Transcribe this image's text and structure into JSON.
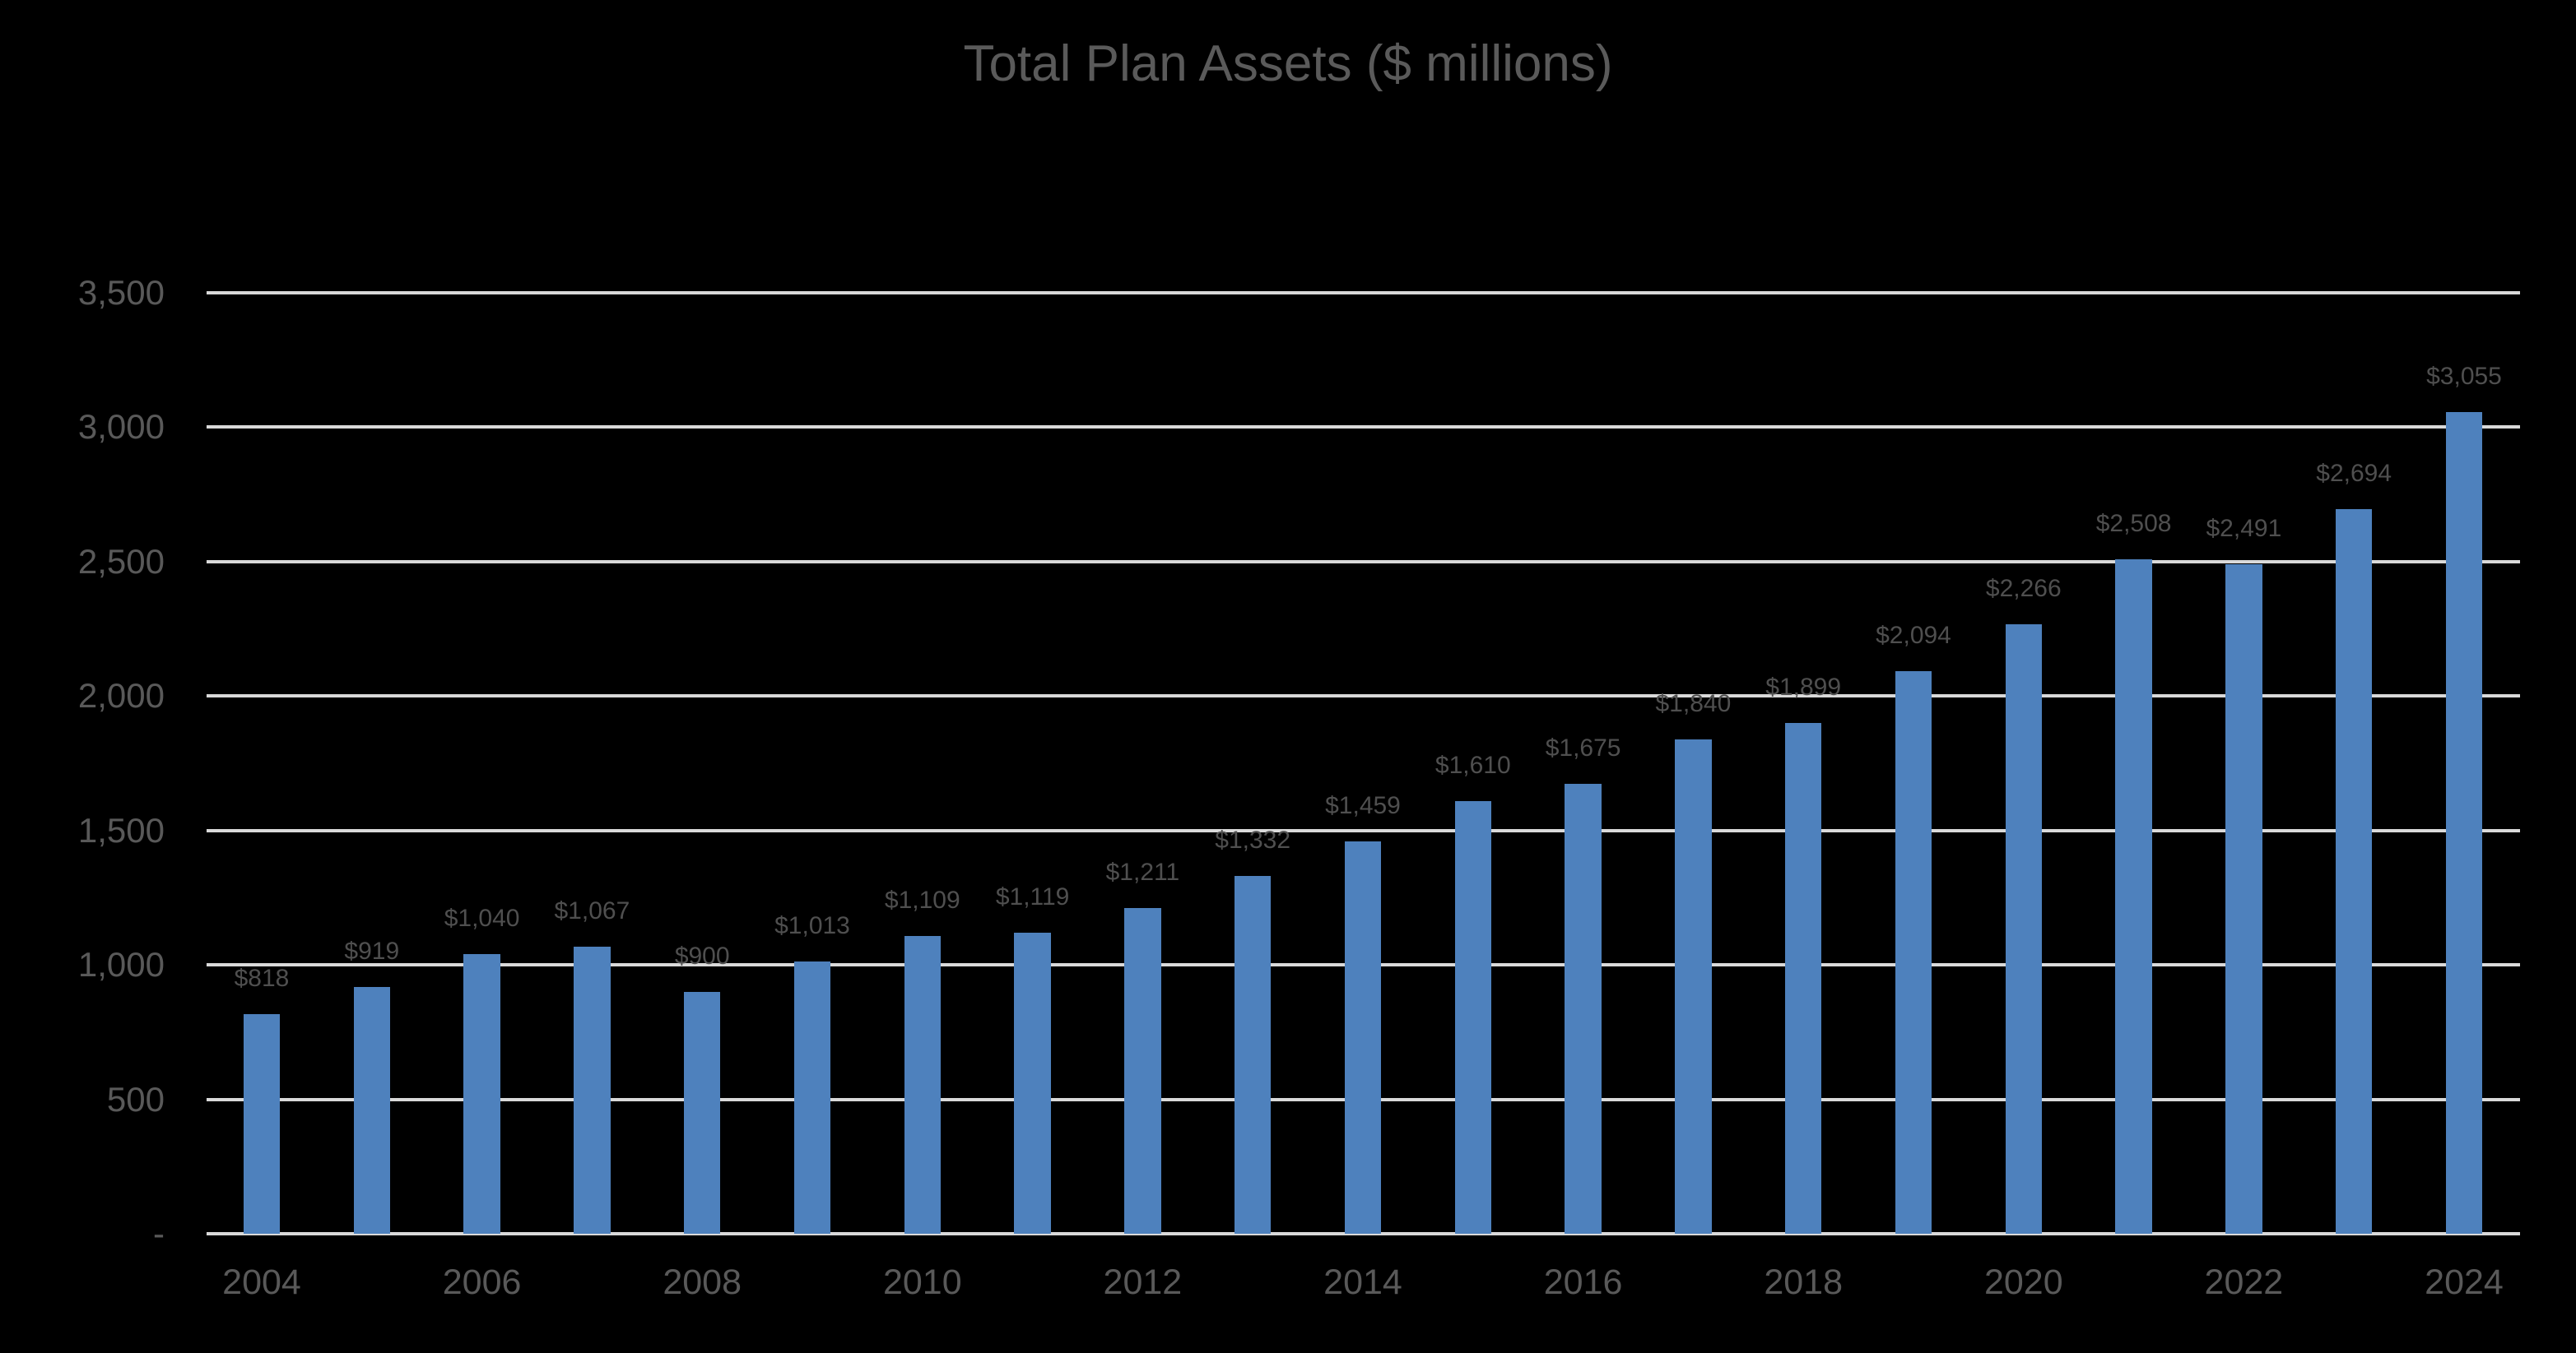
{
  "colors": {
    "background": "#000000",
    "bar": "#4e81bd",
    "gridline": "#d9d9d9",
    "title_text": "#5a5a5a",
    "axis_text": "#595959",
    "data_label_text": "#4f4f4f"
  },
  "chart_data": {
    "type": "bar",
    "title": "Total Plan Assets ($ millions)",
    "categories": [
      "2004",
      "2005",
      "2006",
      "2007",
      "2008",
      "2009",
      "2010",
      "2011",
      "2012",
      "2013",
      "2014",
      "2015",
      "2016",
      "2017",
      "2018",
      "2019",
      "2020",
      "2021",
      "2022",
      "2023",
      "2024"
    ],
    "values": [
      818,
      919,
      1040,
      1067,
      900,
      1013,
      1109,
      1119,
      1211,
      1332,
      1459,
      1610,
      1675,
      1840,
      1899,
      2094,
      2266,
      2508,
      2491,
      2694,
      3055
    ],
    "data_labels": [
      "$818",
      "$919",
      "$1,040",
      "$1,067",
      "$900",
      "$1,013",
      "$1,109",
      "$1,119",
      "$1,211",
      "$1,332",
      "$1,459",
      "$1,610",
      "$1,675",
      "$1,840",
      "$1,899",
      "$2,094",
      "$2,266",
      "$2,508",
      "$2,491",
      "$2,694",
      "$3,055"
    ],
    "xlabel": "",
    "ylabel": "",
    "ylim": [
      0,
      3500
    ],
    "y_ticks": [
      {
        "value": 0,
        "label": "-"
      },
      {
        "value": 500,
        "label": "500"
      },
      {
        "value": 1000,
        "label": "1,000"
      },
      {
        "value": 1500,
        "label": "1,500"
      },
      {
        "value": 2000,
        "label": "2,000"
      },
      {
        "value": 2500,
        "label": "2,500"
      },
      {
        "value": 3000,
        "label": "3,000"
      },
      {
        "value": 3500,
        "label": "3,500"
      }
    ],
    "x_tick_labels": [
      "2004",
      "2006",
      "2008",
      "2010",
      "2012",
      "2014",
      "2016",
      "2018",
      "2020",
      "2022",
      "2024"
    ],
    "x_tick_every": 2,
    "grid": true,
    "legend": false,
    "data_labels_visible": true
  }
}
